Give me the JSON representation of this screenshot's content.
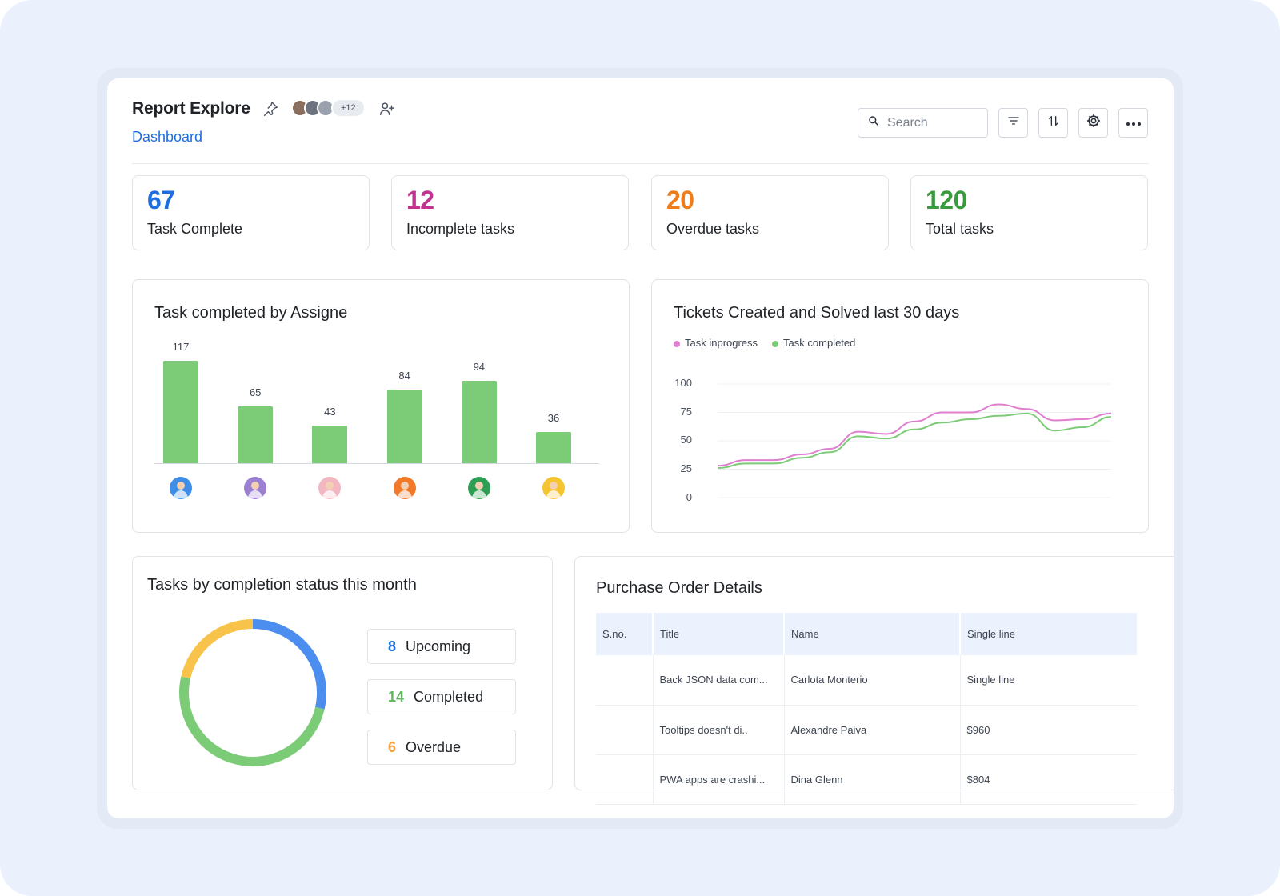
{
  "header": {
    "title": "Report Explore",
    "breadcrumb": "Dashboard",
    "members_extra": "+12",
    "search_placeholder": "Search"
  },
  "stats": [
    {
      "value": "67",
      "label": "Task Complete",
      "color": "#1d6fe0"
    },
    {
      "value": "12",
      "label": "Incomplete tasks",
      "color": "#c2338f"
    },
    {
      "value": "20",
      "label": "Overdue tasks",
      "color": "#ef7d1a"
    },
    {
      "value": "120",
      "label": "Total tasks",
      "color": "#3a9b3e"
    }
  ],
  "assignee_chart": {
    "title": "Task completed by Assigne",
    "chart_data": {
      "type": "bar",
      "categories": [
        "Assignee 1",
        "Assignee 2",
        "Assignee 3",
        "Assignee 4",
        "Assignee 5",
        "Assignee 6"
      ],
      "values": [
        117,
        65,
        43,
        84,
        94,
        36
      ],
      "avatar_colors": [
        "#3e8ee8",
        "#9b7fd1",
        "#f3b7c2",
        "#f07a2a",
        "#2e9e55",
        "#f5c431"
      ]
    }
  },
  "tickets_chart": {
    "title": "Tickets Created and Solved last 30 days",
    "chart_data": {
      "type": "line",
      "yticks": [
        "100",
        "75",
        "50",
        "25",
        "0"
      ],
      "ylim": [
        0,
        100
      ],
      "series": [
        {
          "name": "Task inprogress",
          "color": "#e07fcf",
          "values": [
            28,
            33,
            33,
            38,
            43,
            58,
            56,
            67,
            75,
            75,
            82,
            78,
            68,
            69,
            74
          ]
        },
        {
          "name": "Task completed",
          "color": "#7ccb77",
          "values": [
            26,
            30,
            30,
            35,
            40,
            54,
            52,
            60,
            66,
            69,
            72,
            74,
            59,
            62,
            71
          ]
        }
      ]
    }
  },
  "status_chart": {
    "title": "Tasks by completion status this month",
    "chart_data": {
      "type": "pie",
      "items": [
        {
          "count": "8",
          "label": "Upcoming",
          "value": 8,
          "color": "#4c8df0"
        },
        {
          "count": "14",
          "label": "Completed",
          "value": 14,
          "color": "#7ccb77"
        },
        {
          "count": "6",
          "label": "Overdue",
          "value": 6,
          "color": "#f7c34a"
        }
      ]
    }
  },
  "orders": {
    "title": "Purchase Order Details",
    "columns": [
      "S.no.",
      "Title",
      "Name",
      "Single line"
    ],
    "rows": [
      [
        "",
        "Back JSON data com...",
        "Carlota Monterio",
        "Single line"
      ],
      [
        "",
        "Tooltips doesn't di..",
        "Alexandre Paiva",
        "$960"
      ],
      [
        "",
        "PWA apps are crashi...",
        "Dina Glenn",
        "$804"
      ]
    ]
  }
}
